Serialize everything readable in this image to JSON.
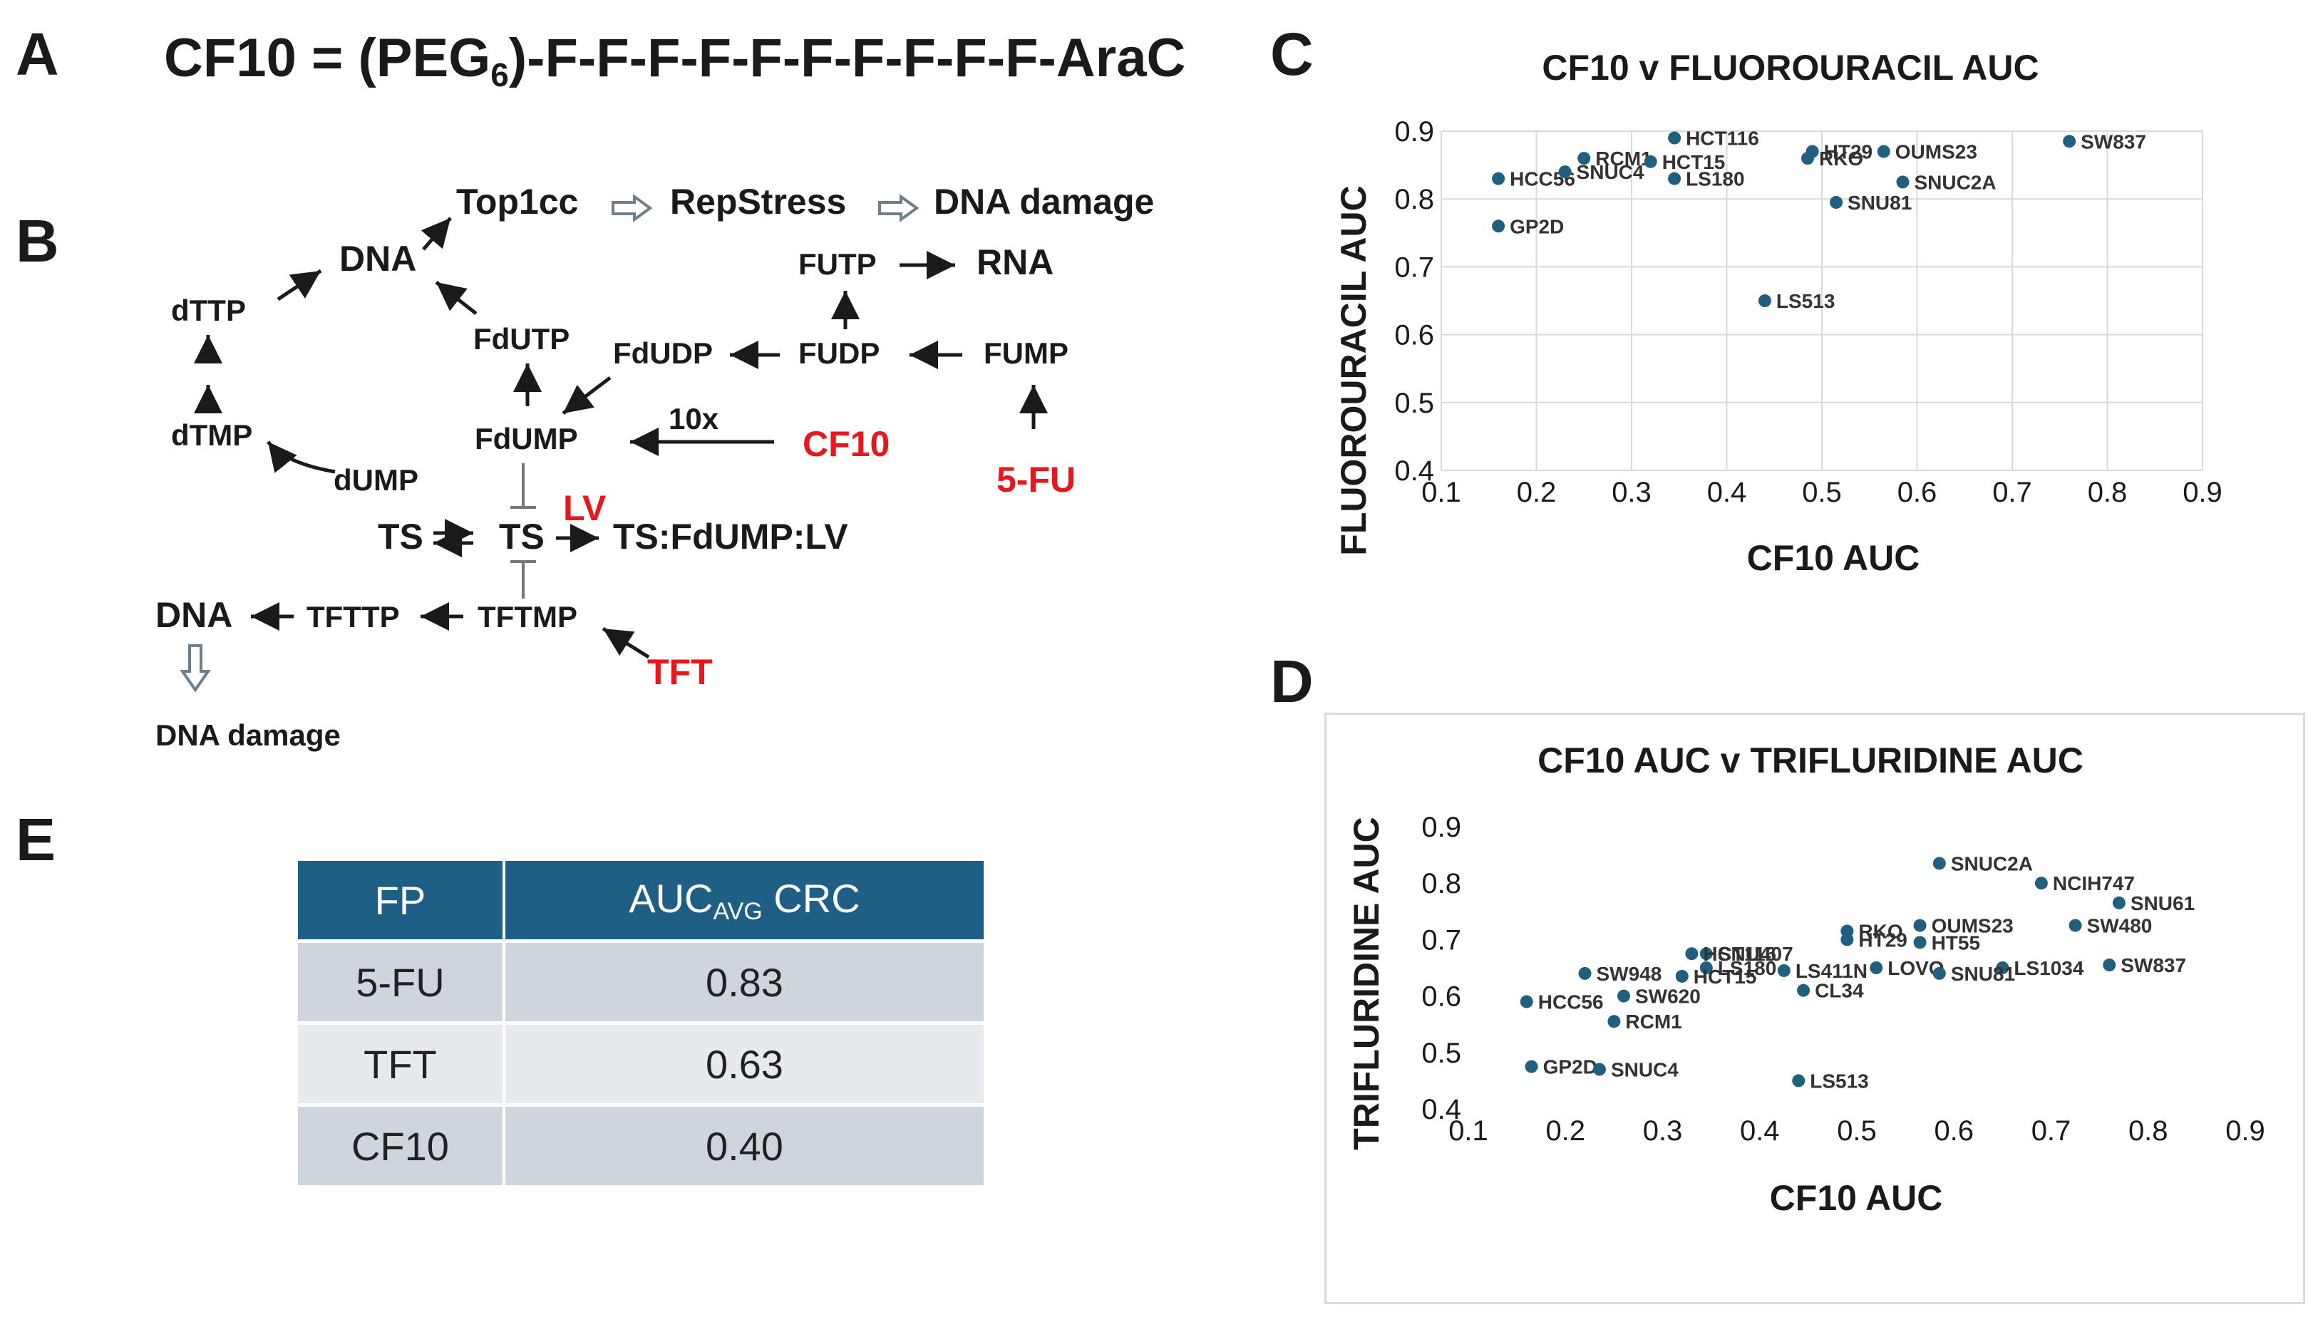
{
  "panels": {
    "A": "A",
    "B": "B",
    "C": "C",
    "D": "D",
    "E": "E"
  },
  "formula": {
    "prefix": "CF10 = (PEG",
    "subscript": "6",
    "suffix": ")-F-F-F-F-F-F-F-F-F-F-AraC"
  },
  "pathway": {
    "nodes": {
      "top1cc": "Top1cc",
      "repstress": "RepStress",
      "dna_damage_top": "DNA damage",
      "dna_top": "DNA",
      "dttp": "dTTP",
      "dtmp": "dTMP",
      "dump": "dUMP",
      "fdutp": "FdUTP",
      "fdudp": "FdUDP",
      "fdump": "FdUMP",
      "futp": "FUTP",
      "rna": "RNA",
      "fudp": "FUDP",
      "fump": "FUMP",
      "multiplier": "10x",
      "cf10": "CF10",
      "fu5": "5-FU",
      "lv": "LV",
      "ts_left": "TS",
      "ts_center": "TS",
      "ts_complex": "TS:FdUMP:LV",
      "dna_bottom": "DNA",
      "tfttp": "TFTTP",
      "tftmp": "TFTMP",
      "tft": "TFT",
      "dna_damage_bottom": "DNA damage"
    }
  },
  "colors": {
    "accent_red": "#e8171d",
    "point": "#1f5f7f",
    "table_header": "#1f5f86"
  },
  "chart_data": [
    {
      "type": "scatter",
      "title": "CF10 v FLUOROURACIL AUC",
      "xlabel": "CF10 AUC",
      "ylabel": "FLUOROURACIL AUC",
      "xlim": [
        0.1,
        0.9
      ],
      "ylim": [
        0.4,
        0.9
      ],
      "xticks": [
        "0.1",
        "0.2",
        "0.3",
        "0.4",
        "0.5",
        "0.6",
        "0.7",
        "0.8",
        "0.9"
      ],
      "yticks": [
        "0.4",
        "0.5",
        "0.6",
        "0.7",
        "0.8",
        "0.9"
      ],
      "grid": true,
      "points": [
        {
          "label": "HCC56",
          "x": 0.16,
          "y": 0.83
        },
        {
          "label": "GP2D",
          "x": 0.16,
          "y": 0.76
        },
        {
          "label": "RCM1",
          "x": 0.25,
          "y": 0.86
        },
        {
          "label": "SNUC4",
          "x": 0.23,
          "y": 0.84
        },
        {
          "label": "HCT116",
          "x": 0.345,
          "y": 0.89
        },
        {
          "label": "HCT15",
          "x": 0.32,
          "y": 0.855
        },
        {
          "label": "LS180",
          "x": 0.345,
          "y": 0.83
        },
        {
          "label": "HT29",
          "x": 0.49,
          "y": 0.87
        },
        {
          "label": "RKO",
          "x": 0.485,
          "y": 0.86
        },
        {
          "label": "OUMS23",
          "x": 0.565,
          "y": 0.87
        },
        {
          "label": "SNUC2A",
          "x": 0.585,
          "y": 0.825
        },
        {
          "label": "SNU81",
          "x": 0.515,
          "y": 0.795
        },
        {
          "label": "SW837",
          "x": 0.76,
          "y": 0.885
        },
        {
          "label": "LS513",
          "x": 0.44,
          "y": 0.65
        }
      ]
    },
    {
      "type": "scatter",
      "title": "CF10 AUC v TRIFLURIDINE AUC",
      "xlabel": "CF10 AUC",
      "ylabel": "TRIFLURIDINE AUC",
      "xlim": [
        0.1,
        0.9
      ],
      "ylim": [
        0.4,
        0.9
      ],
      "xticks": [
        "0.1",
        "0.2",
        "0.3",
        "0.4",
        "0.5",
        "0.6",
        "0.7",
        "0.8",
        "0.9"
      ],
      "yticks": [
        "0.4",
        "0.5",
        "0.6",
        "0.7",
        "0.8",
        "0.9"
      ],
      "grid": false,
      "points": [
        {
          "label": "SNUC2A",
          "x": 0.585,
          "y": 0.835
        },
        {
          "label": "NCIH747",
          "x": 0.69,
          "y": 0.8
        },
        {
          "label": "SNU61",
          "x": 0.77,
          "y": 0.765
        },
        {
          "label": "SW480",
          "x": 0.725,
          "y": 0.725
        },
        {
          "label": "OUMS23",
          "x": 0.565,
          "y": 0.725
        },
        {
          "label": "RKO",
          "x": 0.49,
          "y": 0.715
        },
        {
          "label": "HT29",
          "x": 0.49,
          "y": 0.7
        },
        {
          "label": "HT55",
          "x": 0.565,
          "y": 0.695
        },
        {
          "label": "SW837",
          "x": 0.76,
          "y": 0.655
        },
        {
          "label": "LS1034",
          "x": 0.65,
          "y": 0.65
        },
        {
          "label": "LOVO",
          "x": 0.52,
          "y": 0.65
        },
        {
          "label": "SNU81",
          "x": 0.585,
          "y": 0.64
        },
        {
          "label": "SNU407",
          "x": 0.345,
          "y": 0.675
        },
        {
          "label": "HCT116",
          "x": 0.33,
          "y": 0.675
        },
        {
          "label": "LS180",
          "x": 0.345,
          "y": 0.65
        },
        {
          "label": "LS411N",
          "x": 0.425,
          "y": 0.645
        },
        {
          "label": "HCT15",
          "x": 0.32,
          "y": 0.635
        },
        {
          "label": "CL34",
          "x": 0.445,
          "y": 0.61
        },
        {
          "label": "SW948",
          "x": 0.22,
          "y": 0.64
        },
        {
          "label": "SW620",
          "x": 0.26,
          "y": 0.6
        },
        {
          "label": "HCC56",
          "x": 0.16,
          "y": 0.59
        },
        {
          "label": "RCM1",
          "x": 0.25,
          "y": 0.555
        },
        {
          "label": "GP2D",
          "x": 0.165,
          "y": 0.475
        },
        {
          "label": "SNUC4",
          "x": 0.235,
          "y": 0.47
        },
        {
          "label": "LS513",
          "x": 0.44,
          "y": 0.45
        }
      ]
    }
  ],
  "table": {
    "headers": {
      "fp": "FP",
      "auc_main": "AUC",
      "auc_sub": "AVG",
      "auc_tail": " CRC"
    },
    "rows": [
      {
        "fp": "5-FU",
        "auc": "0.83"
      },
      {
        "fp": "TFT",
        "auc": "0.63"
      },
      {
        "fp": "CF10",
        "auc": "0.40"
      }
    ]
  }
}
